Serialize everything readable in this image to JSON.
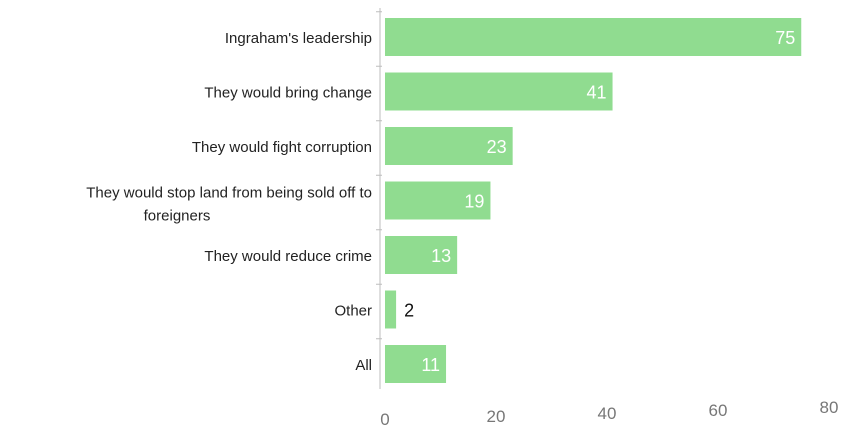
{
  "chart_data": {
    "type": "bar",
    "orientation": "horizontal",
    "title": "",
    "xlabel": "",
    "ylabel": "",
    "categories": [
      "Ingraham's leadership",
      "They would bring change",
      "They would fight corruption",
      "They would stop land from being sold off to foreigners",
      "They would reduce crime",
      "Other",
      "All"
    ],
    "category_lines": [
      [
        "Ingraham's leadership"
      ],
      [
        "They would bring change"
      ],
      [
        "They would fight corruption"
      ],
      [
        "They would stop land from being sold off to",
        "foreigners"
      ],
      [
        "They would reduce crime"
      ],
      [
        "Other"
      ],
      [
        "All"
      ]
    ],
    "values": [
      75,
      41,
      23,
      19,
      13,
      2,
      11
    ],
    "data_labels": [
      "75",
      "41",
      "23",
      "19",
      "13",
      "2",
      "11"
    ],
    "xlim": [
      0,
      80
    ],
    "xticks": [
      0,
      20,
      40,
      60,
      80
    ],
    "xtick_labels": [
      "0",
      "20",
      "40",
      "60",
      "80"
    ],
    "grid": false,
    "bar_color": "#90dc90",
    "label_color_inside": "#ffffff",
    "label_color_outside": "#111111"
  }
}
